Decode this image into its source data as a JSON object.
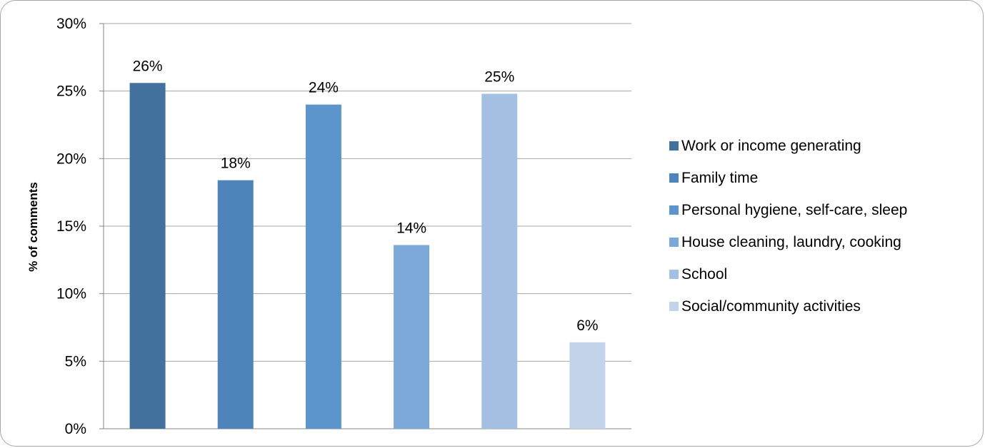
{
  "chart_data": {
    "type": "bar",
    "title": "",
    "xlabel": "",
    "ylabel": "% of comments",
    "ylim": [
      0,
      30
    ],
    "yticks": [
      "0%",
      "5%",
      "10%",
      "15%",
      "20%",
      "25%",
      "30%"
    ],
    "grid": true,
    "legend_position": "right",
    "categories": [
      "Work or income generating",
      "Family time",
      "Personal hygiene, self-care, sleep",
      "House cleaning, laundry, cooking",
      "School",
      "Social/community activities"
    ],
    "values": [
      25.6,
      18.4,
      24.0,
      13.6,
      24.8,
      6.4
    ],
    "data_labels": [
      "26%",
      "18%",
      "24%",
      "14%",
      "25%",
      "6%"
    ],
    "colors": [
      "#41719c",
      "#4e84b9",
      "#5b95cc",
      "#7ba7d9",
      "#a3bfe2",
      "#c3d4ea"
    ]
  }
}
